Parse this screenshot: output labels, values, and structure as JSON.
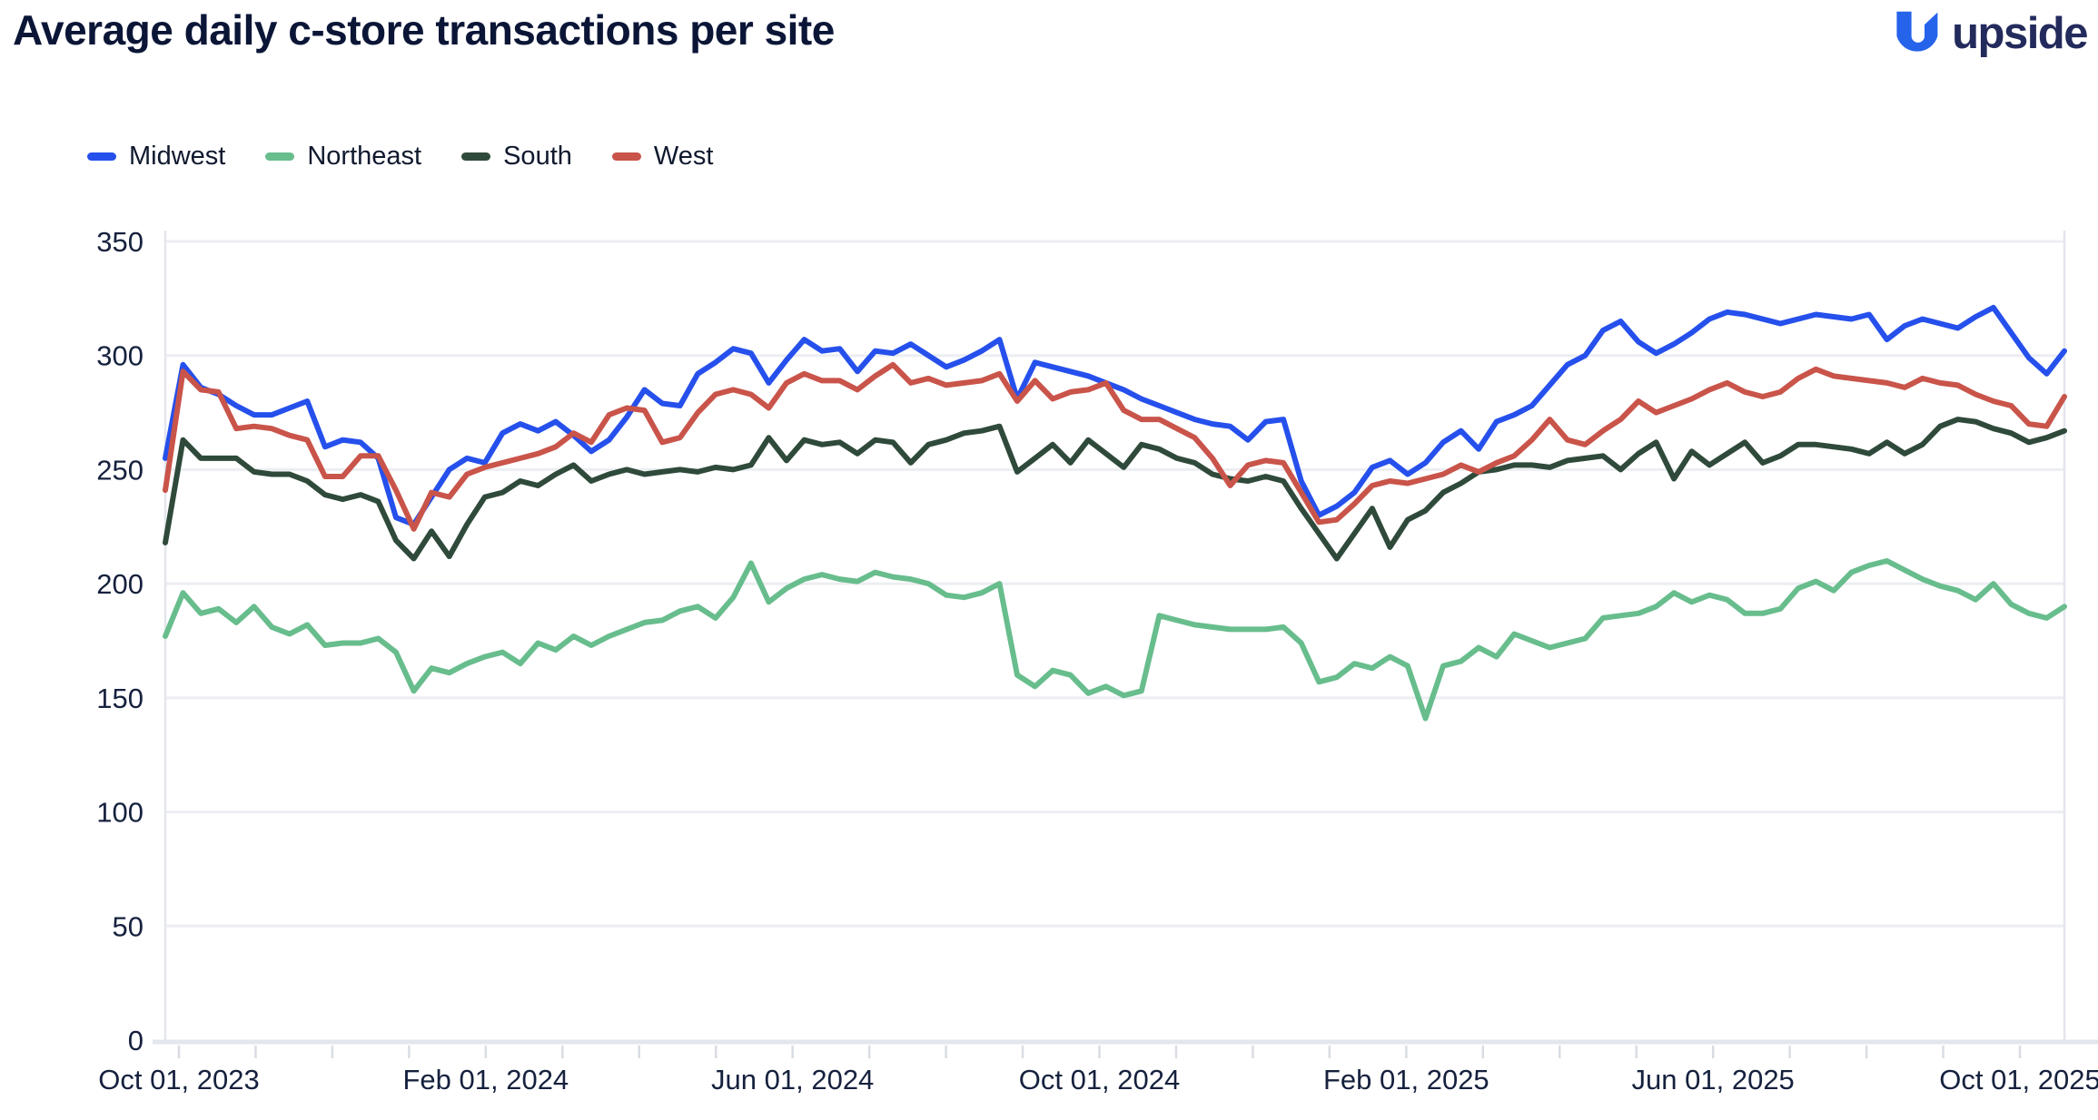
{
  "header": {
    "title": "Average daily c-store transactions per site",
    "logo_text": "upside"
  },
  "colors": {
    "midwest": "#2650ec",
    "northeast": "#68bd8d",
    "south": "#2f4a3b",
    "west": "#c9544a",
    "logo_blue": "#2563eb",
    "logo_navy": "#232a5c",
    "title_navy": "#0b1637",
    "gridline": "#eceef2",
    "axis_line": "#e3e6ec",
    "tick_text": "#16213e"
  },
  "legend": {
    "items": [
      {
        "label": "Midwest",
        "color": "#2650ec"
      },
      {
        "label": "Northeast",
        "color": "#68bd8d"
      },
      {
        "label": "South",
        "color": "#2f4a3b"
      },
      {
        "label": "West",
        "color": "#c9544a"
      }
    ]
  },
  "chart_data": {
    "type": "line",
    "title": "Average daily c-store transactions per site",
    "xlabel": "",
    "ylabel": "",
    "ylim": [
      0,
      350
    ],
    "y_ticks": [
      0,
      50,
      100,
      150,
      200,
      250,
      300,
      350
    ],
    "x_start": "Oct 01, 2023",
    "x_end": "Oct 01, 2025",
    "x_interval": "weekly",
    "x_tick_labels": [
      "Oct 01, 2023",
      "Feb 01, 2024",
      "Jun 01, 2024",
      "Oct 01, 2024",
      "Feb 01, 2025",
      "Jun 01, 2025",
      "Oct 01, 2025"
    ],
    "grid": "horizontal",
    "legend_position": "top-left",
    "series": [
      {
        "name": "Midwest",
        "color": "#2650ec",
        "values": [
          255,
          296,
          286,
          283,
          278,
          274,
          274,
          277,
          280,
          260,
          263,
          262,
          255,
          229,
          226,
          238,
          250,
          255,
          253,
          266,
          270,
          267,
          271,
          265,
          258,
          263,
          273,
          285,
          279,
          278,
          292,
          297,
          303,
          301,
          288,
          298,
          307,
          302,
          303,
          293,
          302,
          301,
          305,
          300,
          295,
          298,
          302,
          307,
          281,
          297,
          295,
          293,
          291,
          288,
          285,
          281,
          278,
          275,
          272,
          270,
          269,
          263,
          271,
          272,
          245,
          230,
          234,
          240,
          251,
          254,
          248,
          253,
          262,
          267,
          259,
          271,
          274,
          278,
          287,
          296,
          300,
          311,
          315,
          306,
          301,
          305,
          310,
          316,
          319,
          318,
          316,
          314,
          316,
          318,
          317,
          316,
          318,
          307,
          313,
          316,
          314,
          312,
          317,
          321,
          310,
          299,
          292,
          302
        ]
      },
      {
        "name": "Northeast",
        "color": "#68bd8d",
        "values": [
          177,
          196,
          187,
          189,
          183,
          190,
          181,
          178,
          182,
          173,
          174,
          174,
          176,
          170,
          153,
          163,
          161,
          165,
          168,
          170,
          165,
          174,
          171,
          177,
          173,
          177,
          180,
          183,
          184,
          188,
          190,
          185,
          194,
          209,
          192,
          198,
          202,
          204,
          202,
          201,
          205,
          203,
          202,
          200,
          195,
          194,
          196,
          200,
          160,
          155,
          162,
          160,
          152,
          155,
          151,
          153,
          186,
          184,
          182,
          181,
          180,
          180,
          180,
          181,
          174,
          157,
          159,
          165,
          163,
          168,
          164,
          141,
          164,
          166,
          172,
          168,
          178,
          175,
          172,
          174,
          176,
          185,
          186,
          187,
          190,
          196,
          192,
          195,
          193,
          187,
          187,
          189,
          198,
          201,
          197,
          205,
          208,
          210,
          206,
          202,
          199,
          197,
          193,
          200,
          191,
          187,
          185,
          190
        ]
      },
      {
        "name": "South",
        "color": "#2f4a3b",
        "values": [
          218,
          263,
          255,
          255,
          255,
          249,
          248,
          248,
          245,
          239,
          237,
          239,
          236,
          219,
          211,
          223,
          212,
          226,
          238,
          240,
          245,
          243,
          248,
          252,
          245,
          248,
          250,
          248,
          249,
          250,
          249,
          251,
          250,
          252,
          264,
          254,
          263,
          261,
          262,
          257,
          263,
          262,
          253,
          261,
          263,
          266,
          267,
          269,
          249,
          255,
          261,
          253,
          263,
          257,
          251,
          261,
          259,
          255,
          253,
          248,
          246,
          245,
          247,
          245,
          233,
          222,
          211,
          222,
          233,
          216,
          228,
          232,
          240,
          244,
          249,
          250,
          252,
          252,
          251,
          254,
          255,
          256,
          250,
          257,
          262,
          246,
          258,
          252,
          257,
          262,
          253,
          256,
          261,
          261,
          260,
          259,
          257,
          262,
          257,
          261,
          269,
          272,
          271,
          268,
          266,
          262,
          264,
          267
        ]
      },
      {
        "name": "West",
        "color": "#c9544a",
        "values": [
          241,
          293,
          285,
          284,
          268,
          269,
          268,
          265,
          263,
          247,
          247,
          256,
          256,
          241,
          224,
          240,
          238,
          248,
          251,
          253,
          255,
          257,
          260,
          266,
          262,
          274,
          277,
          276,
          262,
          264,
          275,
          283,
          285,
          283,
          277,
          288,
          292,
          289,
          289,
          285,
          291,
          296,
          288,
          290,
          287,
          288,
          289,
          292,
          280,
          289,
          281,
          284,
          285,
          288,
          276,
          272,
          272,
          268,
          264,
          255,
          243,
          252,
          254,
          253,
          240,
          227,
          228,
          235,
          243,
          245,
          244,
          246,
          248,
          252,
          249,
          253,
          256,
          263,
          272,
          263,
          261,
          267,
          272,
          280,
          275,
          278,
          281,
          285,
          288,
          284,
          282,
          284,
          290,
          294,
          291,
          290,
          289,
          288,
          286,
          290,
          288,
          287,
          283,
          280,
          278,
          270,
          269,
          282
        ]
      }
    ]
  }
}
